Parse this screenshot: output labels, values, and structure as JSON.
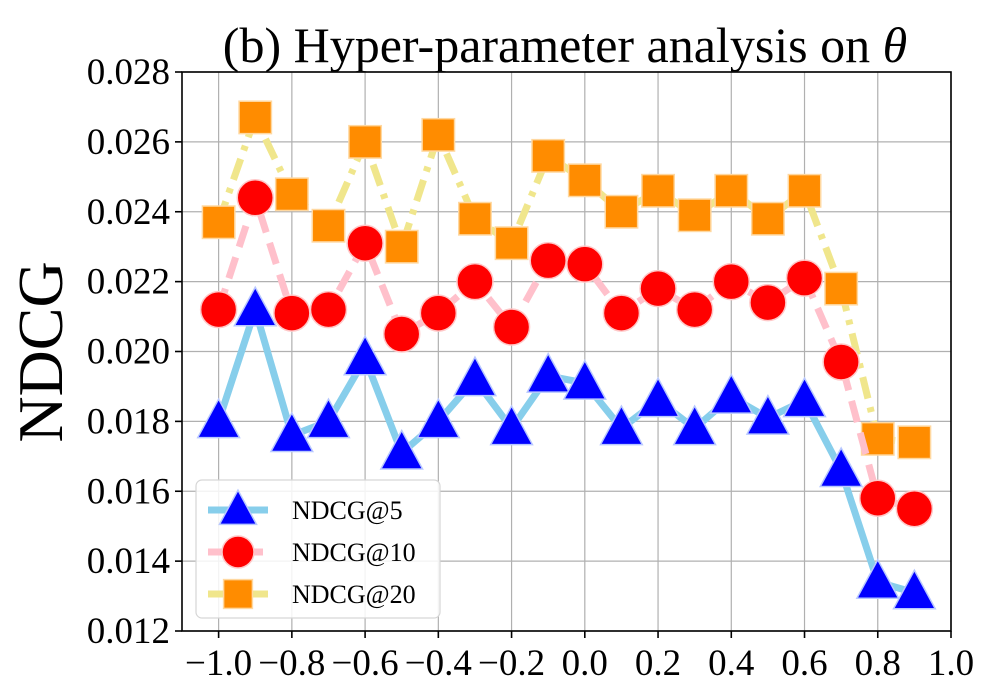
{
  "chart_data": {
    "type": "line",
    "title": "(b) Hyper-parameter analysis on θ",
    "title_prefix": "(b) Hyper-parameter analysis on ",
    "title_symbol": "θ",
    "xlabel": "",
    "ylabel": "NDCG",
    "xlim": [
      -1.1,
      1.0
    ],
    "ylim": [
      0.012,
      0.028
    ],
    "grid": true,
    "legend_position": "lower-left",
    "x": [
      -1.0,
      -0.9,
      -0.8,
      -0.7,
      -0.6,
      -0.5,
      -0.4,
      -0.3,
      -0.2,
      -0.1,
      0.0,
      0.1,
      0.2,
      0.3,
      0.4,
      0.5,
      0.6,
      0.7,
      0.8,
      0.9
    ],
    "x_ticks": [
      -1.0,
      -0.8,
      -0.6,
      -0.4,
      -0.2,
      0.0,
      0.2,
      0.4,
      0.6,
      0.8,
      1.0
    ],
    "x_tick_labels": [
      "−1.0",
      "−0.8",
      "−0.6",
      "−0.4",
      "−0.2",
      "0.0",
      "0.2",
      "0.4",
      "0.6",
      "0.8",
      "1.0"
    ],
    "y_ticks": [
      0.012,
      0.014,
      0.016,
      0.018,
      0.02,
      0.022,
      0.024,
      0.026,
      0.028
    ],
    "y_tick_labels": [
      "0.012",
      "0.014",
      "0.016",
      "0.018",
      "0.020",
      "0.022",
      "0.024",
      "0.026",
      "0.028"
    ],
    "series": [
      {
        "name": "NDCG@5",
        "line_color": "#87ceeb",
        "marker": "triangle",
        "marker_color": "#0000ff",
        "dash": "solid",
        "values": [
          0.018,
          0.0212,
          0.0176,
          0.018,
          0.0198,
          0.0171,
          0.018,
          0.0192,
          0.0178,
          0.0193,
          0.0191,
          0.0178,
          0.0186,
          0.0178,
          0.0187,
          0.0181,
          0.0186,
          0.0166,
          0.0134,
          0.0131
        ]
      },
      {
        "name": "NDCG@10",
        "line_color": "#ffc0cb",
        "marker": "circle",
        "marker_color": "#ff0000",
        "dash": "dashed",
        "values": [
          0.0212,
          0.0244,
          0.0211,
          0.0212,
          0.0231,
          0.0205,
          0.0211,
          0.022,
          0.0207,
          0.0226,
          0.0225,
          0.0211,
          0.0218,
          0.0212,
          0.022,
          0.0214,
          0.0221,
          0.0197,
          0.0158,
          0.0155
        ]
      },
      {
        "name": "NDCG@20",
        "line_color": "#f0e68c",
        "marker": "square",
        "marker_color": "#ff8c00",
        "dash": "dashdot",
        "values": [
          0.0237,
          0.0267,
          0.0245,
          0.0236,
          0.026,
          0.023,
          0.0262,
          0.0238,
          0.0231,
          0.0256,
          0.0249,
          0.024,
          0.0246,
          0.0239,
          0.0246,
          0.0238,
          0.0246,
          0.0218,
          0.0175,
          0.0174
        ]
      }
    ]
  }
}
